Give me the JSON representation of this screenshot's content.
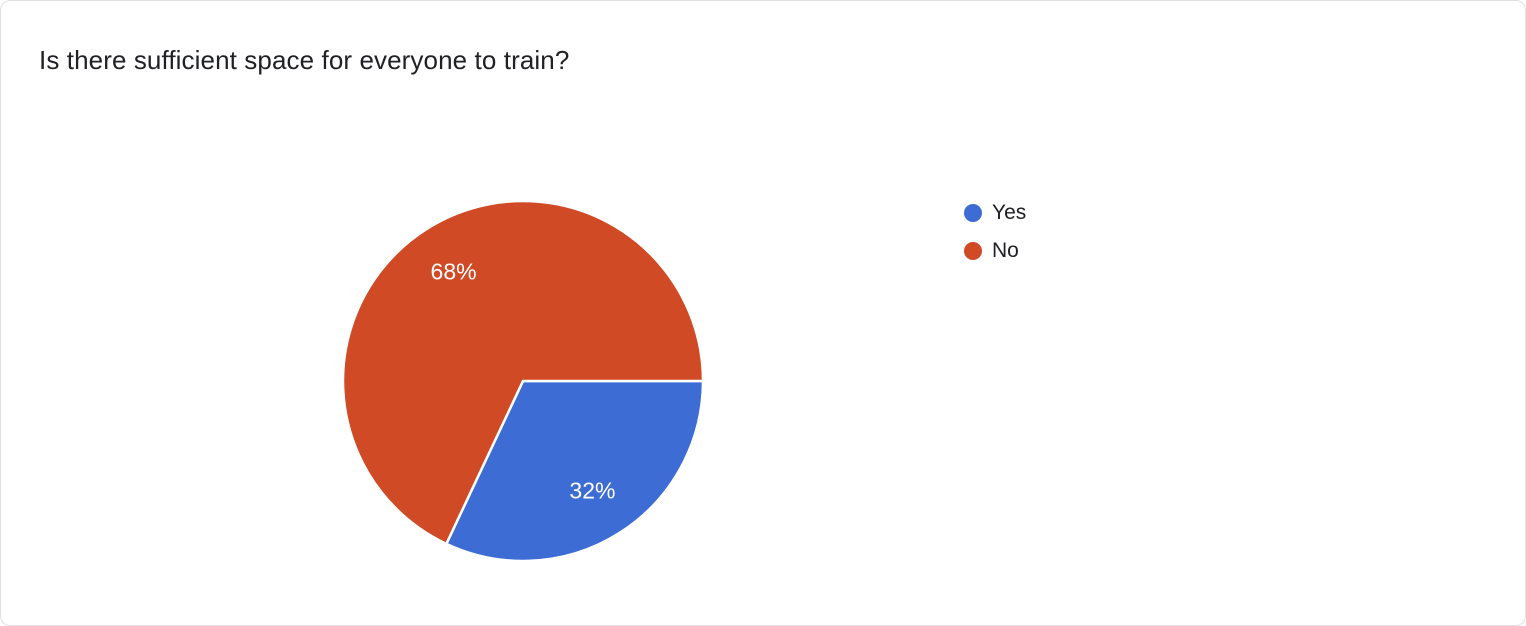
{
  "title": "Is there sufficient space for everyone to train?",
  "chart_data": {
    "type": "pie",
    "title": "Is there sufficient space for everyone to train?",
    "categories": [
      "Yes",
      "No"
    ],
    "values": [
      32,
      68
    ],
    "unit": "%",
    "labels": [
      "32%",
      "68%"
    ],
    "colors": [
      "#3d6cd5",
      "#d04a26"
    ],
    "label_color": "#ffffff",
    "legend_position": "right",
    "start_angle_deg": 0,
    "direction": "clockwise"
  },
  "legend": {
    "items": [
      {
        "label": "Yes",
        "color": "#3d6cd5"
      },
      {
        "label": "No",
        "color": "#d04a26"
      }
    ]
  }
}
